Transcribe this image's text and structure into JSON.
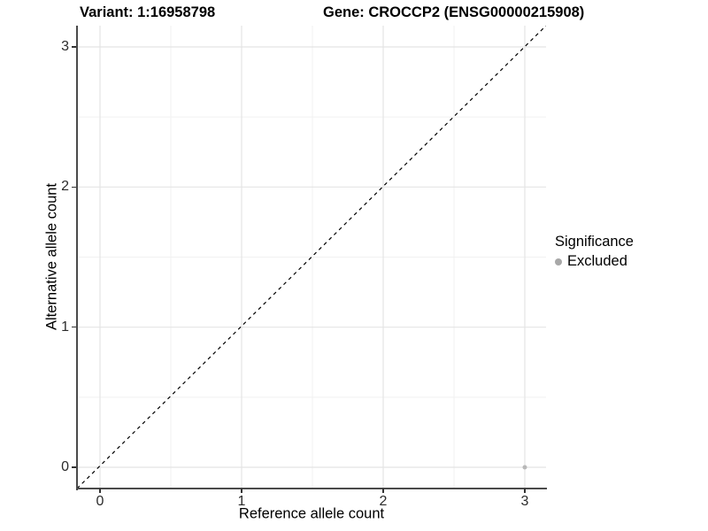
{
  "titles": {
    "left": "Variant: 1:16958798",
    "right": "Gene: CROCCP2 (ENSG00000215908)"
  },
  "chart_data": {
    "type": "scatter",
    "title_left": "Variant: 1:16958798",
    "title_right": "Gene: CROCCP2 (ENSG00000215908)",
    "xlabel": "Reference allele count",
    "ylabel": "Alternative allele count",
    "xlim": [
      -0.16,
      3.15
    ],
    "ylim": [
      -0.15,
      3.15
    ],
    "x_ticks": [
      0,
      1,
      2,
      3
    ],
    "y_ticks": [
      0,
      1,
      2,
      3
    ],
    "x_minor_ticks": [
      0.5,
      1.5,
      2.5
    ],
    "y_minor_ticks": [
      0.5,
      1.5,
      2.5
    ],
    "grid": "on",
    "reference_line": {
      "type": "identity",
      "line_style": "dashed",
      "color": "#000000"
    },
    "series": [
      {
        "name": "Excluded",
        "color": "#b8b8b8",
        "points": [
          {
            "x": 3,
            "y": 0
          }
        ]
      }
    ],
    "legend": {
      "title": "Significance",
      "position": "right",
      "entries": [
        {
          "label": "Excluded",
          "color": "#a8a8a8"
        }
      ]
    },
    "style": {
      "grid_major_color": "#e4e4e4",
      "grid_minor_color": "#f1f1f1",
      "axis_line_color": "#4a4a4a",
      "tick_color": "#333333",
      "point_radius": 2.5,
      "legend_key_color": "#a8a8a8"
    }
  }
}
